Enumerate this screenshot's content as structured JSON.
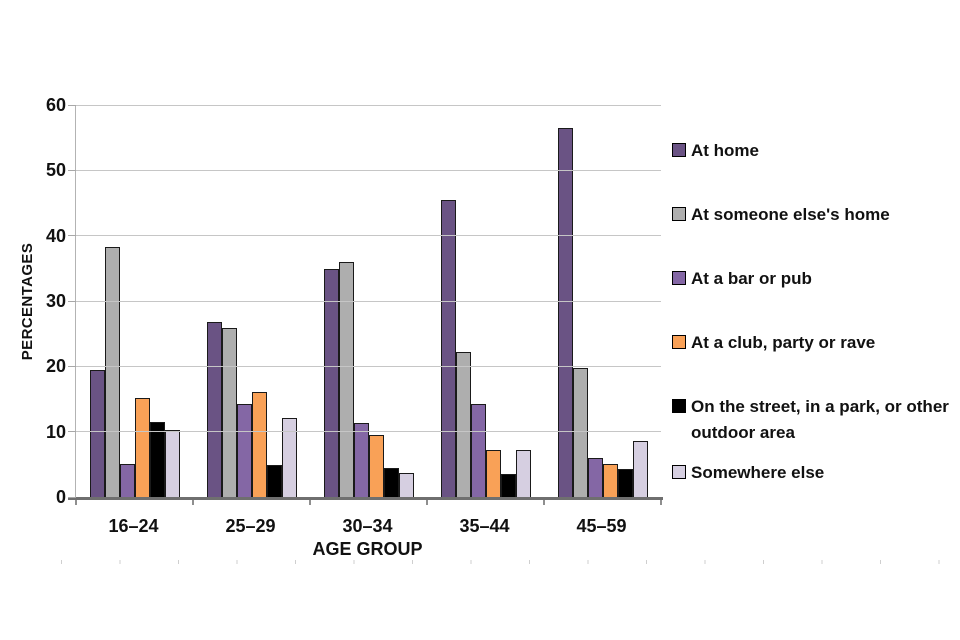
{
  "chart_data": {
    "type": "bar",
    "title": "",
    "xlabel": "AGE GROUP",
    "ylabel": "PERCENTAGES",
    "ylim": [
      0,
      60
    ],
    "yticks": [
      0,
      10,
      20,
      30,
      40,
      50,
      60
    ],
    "grid": true,
    "legend_position": "right",
    "categories": [
      "16–24",
      "25–29",
      "30–34",
      "35–44",
      "45–59"
    ],
    "series": [
      {
        "name": "At home",
        "color": "#6a5384",
        "values": [
          19.5,
          26.8,
          35.0,
          45.6,
          56.5
        ]
      },
      {
        "name": "At someone else's home",
        "color": "#aeaeae",
        "values": [
          38.4,
          26.0,
          36.0,
          22.2,
          19.8
        ]
      },
      {
        "name": "At a bar or pub",
        "color": "#8467a5",
        "values": [
          5.2,
          14.3,
          11.4,
          14.3,
          6.0
        ]
      },
      {
        "name": "At a club, party or rave",
        "color": "#f9a157",
        "values": [
          15.2,
          16.1,
          9.5,
          7.3,
          5.2
        ]
      },
      {
        "name": "On the street, in a park, or other outdoor area",
        "color": "#000000",
        "values": [
          11.5,
          5.0,
          4.5,
          3.6,
          4.3
        ]
      },
      {
        "name": "Somewhere else",
        "color": "#d6cfe1",
        "values": [
          10.4,
          12.2,
          3.8,
          7.3,
          8.7
        ]
      }
    ]
  }
}
